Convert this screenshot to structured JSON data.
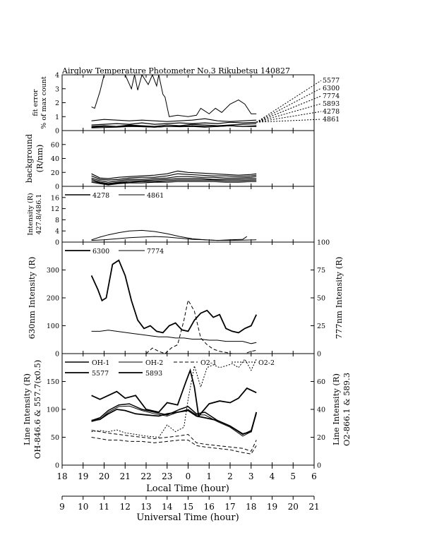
{
  "title": "Airglow Temperature Photometer No.3   Rikubetsu    140827",
  "colors": {
    "ink": "#000000",
    "background": "#ffffff"
  },
  "chart_data": [
    {
      "type": "line",
      "id": "fit_error",
      "ylabel": [
        "fit error",
        "% of max count"
      ],
      "ylim": [
        0,
        4
      ],
      "yticks": [
        "0",
        "1",
        "2",
        "3",
        "4"
      ],
      "legend": [
        "5577",
        "6300",
        "7774",
        "5893",
        "4278",
        "4861"
      ],
      "series": [
        {
          "name": "5577",
          "x": [
            19.4,
            19.55,
            19.8,
            20.0,
            20.3,
            20.6,
            21.0,
            21.3,
            21.45,
            21.6,
            21.8,
            22.1,
            22.3,
            22.5,
            22.6,
            22.8,
            22.9,
            23.1,
            23.5,
            0.0,
            0.4,
            0.6,
            1.0,
            1.3,
            1.6,
            2.0,
            2.4,
            2.7,
            3.0,
            3.25
          ],
          "y": [
            1.7,
            1.6,
            2.8,
            4.0,
            4.0,
            4.0,
            4.0,
            3.0,
            4.0,
            2.9,
            4.0,
            3.3,
            4.0,
            3.2,
            4.0,
            2.6,
            2.4,
            1.0,
            1.1,
            1.0,
            1.1,
            1.6,
            1.2,
            1.6,
            1.3,
            1.9,
            2.2,
            1.9,
            1.2,
            1.2
          ]
        },
        {
          "name": "6300",
          "x": [
            19.4,
            20.0,
            20.6,
            21.2,
            21.8,
            22.4,
            23.0,
            23.6,
            0.2,
            0.8,
            1.4,
            2.0,
            2.6,
            3.25
          ],
          "y": [
            0.7,
            0.8,
            0.75,
            0.7,
            0.75,
            0.7,
            0.65,
            0.7,
            0.75,
            0.85,
            0.7,
            0.65,
            0.7,
            0.75
          ]
        },
        {
          "name": "7774",
          "x": [
            19.4,
            20.0,
            20.6,
            21.2,
            21.8,
            22.4,
            23.0,
            23.6,
            0.2,
            0.8,
            1.4,
            2.0,
            2.6,
            3.25
          ],
          "y": [
            0.4,
            0.45,
            0.5,
            0.45,
            0.55,
            0.45,
            0.5,
            0.55,
            0.5,
            0.55,
            0.5,
            0.6,
            0.55,
            0.6
          ]
        },
        {
          "name": "5893",
          "x": [
            19.4,
            20.0,
            20.6,
            21.2,
            21.8,
            22.4,
            23.0,
            23.6,
            0.2,
            0.8,
            1.4,
            2.0,
            2.6,
            3.25
          ],
          "y": [
            0.3,
            0.35,
            0.3,
            0.4,
            0.35,
            0.3,
            0.4,
            0.35,
            0.45,
            0.4,
            0.35,
            0.4,
            0.45,
            0.5
          ]
        },
        {
          "name": "4278",
          "x": [
            19.4,
            20.0,
            20.6,
            21.2,
            21.8,
            22.4,
            23.0,
            23.6,
            0.2,
            0.8,
            1.4,
            2.0,
            2.6,
            3.25
          ],
          "y": [
            0.25,
            0.3,
            0.3,
            0.35,
            0.3,
            0.25,
            0.3,
            0.3,
            0.35,
            0.3,
            0.3,
            0.35,
            0.3,
            0.35
          ]
        },
        {
          "name": "4861",
          "x": [
            19.4,
            20.0,
            20.6,
            21.2,
            21.8,
            22.4,
            23.0,
            23.6,
            0.2,
            0.8,
            1.4,
            2.0,
            2.6,
            3.25
          ],
          "y": [
            0.2,
            0.22,
            0.25,
            0.3,
            0.28,
            0.25,
            0.3,
            0.28,
            0.3,
            0.25,
            0.3,
            0.35,
            0.3,
            0.3
          ]
        }
      ]
    },
    {
      "type": "line",
      "id": "background",
      "ylabel": [
        "background",
        "(R/nm)"
      ],
      "ylim": [
        0,
        80
      ],
      "yticks": [
        "0",
        "20",
        "40",
        "60"
      ],
      "series": [
        {
          "name": "",
          "x": [
            19.4,
            19.8,
            20.2,
            20.7,
            21.2,
            21.8,
            22.4,
            23.0,
            23.5,
            0.0,
            0.6,
            1.2,
            1.8,
            2.4,
            3.0,
            3.25
          ],
          "y": [
            18,
            12,
            11,
            13,
            14,
            15,
            16,
            18,
            22,
            20,
            19,
            18,
            17,
            16,
            17,
            18
          ]
        },
        {
          "name": "",
          "x": [
            19.4,
            19.8,
            20.2,
            20.7,
            21.2,
            21.8,
            22.4,
            23.0,
            23.5,
            0.0,
            0.6,
            1.2,
            1.8,
            2.4,
            3.0,
            3.25
          ],
          "y": [
            15,
            10,
            9,
            10,
            12,
            13,
            13,
            15,
            18,
            17,
            16,
            15,
            15,
            14,
            15,
            16
          ]
        },
        {
          "name": "",
          "x": [
            19.4,
            19.8,
            20.2,
            20.7,
            21.2,
            21.8,
            22.4,
            23.0,
            23.5,
            0.0,
            0.6,
            1.2,
            1.8,
            2.4,
            3.0,
            3.25
          ],
          "y": [
            12,
            8,
            6,
            8,
            10,
            10,
            11,
            12,
            14,
            14,
            13,
            13,
            12,
            12,
            13,
            14
          ]
        },
        {
          "name": "",
          "x": [
            19.4,
            19.8,
            20.2,
            20.7,
            21.2,
            21.8,
            22.4,
            23.0,
            23.5,
            0.0,
            0.6,
            1.2,
            1.8,
            2.4,
            3.0,
            3.25
          ],
          "y": [
            10,
            6,
            4,
            6,
            8,
            8,
            9,
            10,
            11,
            11,
            11,
            10,
            10,
            10,
            11,
            11
          ]
        },
        {
          "name": "",
          "x": [
            19.4,
            19.8,
            20.2,
            20.7,
            21.2,
            21.8,
            22.4,
            23.0,
            23.5,
            0.0,
            0.6,
            1.2,
            1.8,
            2.4,
            3.0,
            3.25
          ],
          "y": [
            8,
            5,
            3,
            5,
            6,
            7,
            7,
            8,
            9,
            9,
            9,
            9,
            8,
            8,
            9,
            9
          ]
        },
        {
          "name": "",
          "x": [
            19.4,
            19.8,
            20.2,
            20.7,
            21.2,
            21.8,
            22.4,
            23.0,
            23.5,
            0.0,
            0.6,
            1.2,
            1.8,
            2.4,
            3.0,
            3.25
          ],
          "y": [
            6,
            4,
            2,
            4,
            5,
            5,
            6,
            6,
            7,
            7,
            7,
            7,
            6,
            6,
            7,
            7
          ]
        }
      ]
    },
    {
      "type": "line",
      "id": "intensity_4278_4861",
      "ylabel": [
        "Intensity (R)",
        "427.8/486.1"
      ],
      "ylim": [
        0,
        20
      ],
      "yticks": [
        "0",
        "4",
        "8",
        "12",
        "16"
      ],
      "legend": [
        "4278",
        "4861"
      ],
      "series": [
        {
          "name": "4278",
          "x": [
            19.4,
            19.8,
            20.2,
            20.7,
            21.2,
            21.8,
            22.4,
            23.0,
            23.6,
            0.2,
            0.8,
            1.4,
            2.0,
            2.6,
            3.25
          ],
          "y": [
            0.8,
            1.8,
            2.6,
            3.4,
            4.0,
            4.2,
            3.8,
            3.0,
            2.0,
            1.2,
            0.8,
            0.6,
            0.6,
            0.7,
            0.8
          ]
        },
        {
          "name": "4861",
          "x": [
            19.4,
            20.0,
            20.6,
            21.2,
            21.8,
            22.4,
            23.0,
            23.6,
            0.2,
            0.8,
            1.4,
            2.0,
            2.6,
            2.8
          ],
          "y": [
            0.6,
            0.8,
            1.2,
            1.6,
            1.8,
            2.0,
            1.8,
            1.4,
            1.0,
            0.8,
            0.6,
            0.8,
            1.0,
            2.0
          ]
        }
      ]
    },
    {
      "type": "line",
      "id": "intensity_6300_7774",
      "ylabel_left": "630nm Intensity (R)",
      "ylabel_right": "777nm Intensity (R)",
      "ylim_left": [
        0,
        400
      ],
      "ylim_right": [
        0,
        100
      ],
      "yticks_left": [
        "0",
        "100",
        "200",
        "300"
      ],
      "yticks_right": [
        "0",
        "25",
        "50",
        "75",
        "100"
      ],
      "legend": [
        "6300",
        "7774"
      ],
      "series": [
        {
          "name": "6300",
          "axis": "left",
          "x": [
            19.4,
            19.7,
            19.9,
            20.1,
            20.4,
            20.7,
            21.0,
            21.3,
            21.6,
            21.9,
            22.2,
            22.5,
            22.8,
            23.1,
            23.4,
            23.7,
            0.0,
            0.3,
            0.6,
            0.9,
            1.2,
            1.5,
            1.8,
            2.1,
            2.4,
            2.7,
            3.0,
            3.25
          ],
          "y": [
            280,
            230,
            190,
            200,
            320,
            335,
            280,
            190,
            120,
            90,
            100,
            80,
            75,
            100,
            110,
            85,
            80,
            120,
            145,
            155,
            130,
            140,
            90,
            80,
            75,
            90,
            100,
            140
          ]
        },
        {
          "name": "7774",
          "axis": "right",
          "x": [
            19.4,
            19.8,
            20.2,
            20.6,
            21.0,
            21.4,
            21.8,
            22.2,
            22.6,
            23.0,
            23.4,
            23.8,
            0.2,
            0.6,
            1.0,
            1.4,
            1.8,
            2.2,
            2.6,
            3.0,
            3.25
          ],
          "y": [
            20,
            20,
            21,
            20,
            19,
            18,
            17,
            16,
            15,
            15,
            14,
            14,
            13,
            13,
            12,
            12,
            11,
            11,
            11,
            9,
            10
          ]
        },
        {
          "name": "",
          "axis": "right",
          "dashed": true,
          "x": [
            22.0,
            22.3,
            22.6,
            22.9,
            23.2,
            23.5,
            23.8,
            0.0,
            0.3,
            0.6,
            0.9,
            1.2,
            1.5,
            1.8,
            2.1,
            2.4,
            2.7,
            3.0,
            3.25
          ],
          "y": [
            0,
            5,
            2,
            0,
            5,
            8,
            30,
            48,
            38,
            14,
            8,
            4,
            2,
            1,
            0,
            0,
            0,
            2,
            3
          ]
        }
      ]
    },
    {
      "type": "line",
      "id": "line_intensity",
      "ylabel_left": [
        "Line Intensity (R)",
        "OH-846.6 & 557.7(x0.5)"
      ],
      "ylabel_right": [
        "Line Intensity (R)",
        "O2-866.1 & 589.3"
      ],
      "ylim_left": [
        0,
        200
      ],
      "ylim_right": [
        0,
        80
      ],
      "yticks_left": [
        "0",
        "50",
        "100",
        "150"
      ],
      "yticks_right": [
        "0",
        "20",
        "40",
        "60"
      ],
      "legend": [
        "OH-1",
        "OH-2",
        "O2-1",
        "O2-2",
        "5577",
        "5893"
      ],
      "series": [
        {
          "name": "OH-1",
          "x": [
            19.4,
            19.8,
            20.2,
            20.7,
            21.2,
            21.8,
            22.4,
            23.0,
            23.6,
            0.0,
            0.4,
            0.8,
            1.4,
            2.0,
            2.6,
            3.0,
            3.25
          ],
          "y": [
            80,
            85,
            98,
            108,
            110,
            100,
            95,
            90,
            100,
            105,
            92,
            95,
            80,
            70,
            55,
            62,
            95
          ]
        },
        {
          "name": "OH-2",
          "x": [
            19.4,
            19.8,
            20.2,
            20.7,
            21.2,
            21.8,
            22.4,
            23.0,
            23.6,
            0.0,
            0.4,
            0.8,
            1.4,
            2.0,
            2.6,
            3.0,
            3.25
          ],
          "y": [
            78,
            82,
            95,
            105,
            106,
            98,
            92,
            88,
            96,
            100,
            90,
            90,
            78,
            68,
            52,
            60,
            92
          ]
        },
        {
          "name": "O2-1",
          "dashed": true,
          "x": [
            19.4,
            19.8,
            20.2,
            20.7,
            21.2,
            21.8,
            22.4,
            23.0,
            23.6,
            0.0,
            0.4,
            0.8,
            1.4,
            2.0,
            2.6,
            3.0,
            3.25
          ],
          "y": [
            25,
            24,
            23,
            22,
            21,
            20,
            19,
            20,
            21,
            22,
            16,
            15,
            14,
            13,
            12,
            10,
            18
          ]
        },
        {
          "name": "O2-2",
          "dashed": true,
          "x": [
            19.4,
            19.8,
            20.2,
            20.7,
            21.2,
            21.8,
            22.4,
            23.0,
            23.6,
            0.0,
            0.4,
            0.8,
            1.4,
            2.0,
            2.6,
            3.0,
            3.25
          ],
          "y": [
            20,
            19,
            18,
            18,
            17,
            17,
            16,
            17,
            18,
            18,
            14,
            13,
            12,
            11,
            9,
            8,
            14
          ]
        },
        {
          "name": "5577",
          "x": [
            19.4,
            19.8,
            20.2,
            20.6,
            21.0,
            21.5,
            22.0,
            22.6,
            23.0,
            23.5,
            23.9,
            0.1,
            0.3,
            0.5,
            1.0,
            1.5,
            2.0,
            2.4,
            2.8,
            3.25
          ],
          "y": [
            125,
            118,
            125,
            132,
            120,
            125,
            100,
            95,
            112,
            108,
            150,
            170,
            140,
            88,
            110,
            115,
            112,
            120,
            138,
            130
          ]
        },
        {
          "name": "5893",
          "x": [
            19.4,
            19.8,
            20.2,
            20.6,
            21.0,
            21.5,
            22.0,
            22.6,
            23.0,
            23.5,
            0.0,
            0.4,
            0.8,
            1.4,
            2.0,
            2.6,
            3.0,
            3.25
          ],
          "y": [
            80,
            82,
            92,
            100,
            98,
            92,
            90,
            88,
            92,
            95,
            98,
            88,
            85,
            80,
            70,
            56,
            60,
            95
          ]
        }
      ],
      "overlay": {
        "name": "",
        "dotted": true,
        "x": [
          19.4,
          19.8,
          20.2,
          20.6,
          21.0,
          21.5,
          22.0,
          22.6,
          23.0,
          23.4,
          23.8,
          0.0,
          0.3,
          0.6,
          0.9,
          1.2,
          1.5,
          1.8,
          2.1,
          2.4,
          2.7,
          3.0,
          3.25
        ],
        "y": [
          60,
          62,
          60,
          63,
          58,
          55,
          52,
          50,
          72,
          60,
          68,
          118,
          178,
          140,
          175,
          180,
          175,
          178,
          182,
          175,
          190,
          170,
          190
        ]
      }
    }
  ],
  "axes": {
    "local_label": "Local Time (hour)",
    "local_ticks": [
      "18",
      "19",
      "20",
      "21",
      "22",
      "23",
      "0",
      "1",
      "2",
      "3",
      "4",
      "5",
      "6"
    ],
    "ut_label": "Universal Time (hour)",
    "ut_ticks": [
      "9",
      "10",
      "11",
      "12",
      "13",
      "14",
      "15",
      "16",
      "17",
      "18",
      "19",
      "20",
      "21"
    ]
  }
}
